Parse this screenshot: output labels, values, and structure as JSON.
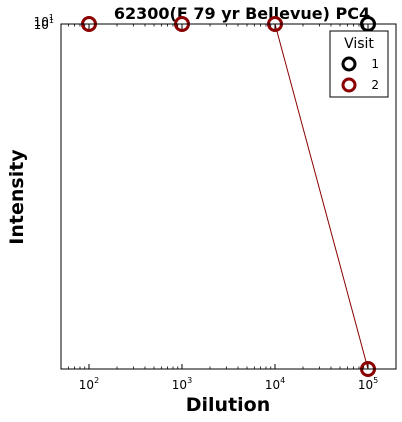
{
  "chart_data": {
    "type": "line",
    "title": "62300(F 79 yr Bellevue) PC4",
    "xlabel": "Dilution",
    "ylabel": "Intensity",
    "xscale": "log",
    "yscale": "log",
    "xlim": [
      50,
      200000
    ],
    "x_ticks": [
      {
        "base": "10",
        "exp": "2",
        "value": 100
      },
      {
        "base": "10",
        "exp": "3",
        "value": 1000
      },
      {
        "base": "10",
        "exp": "4",
        "value": 10000
      },
      {
        "base": "10",
        "exp": "5",
        "value": 100000
      }
    ],
    "y_top_tick": {
      "base": "10",
      "exp": "1"
    },
    "grid": false,
    "legend": {
      "title": "Visit",
      "placement": "top-right"
    },
    "series": [
      {
        "name": "1",
        "color": "#000000",
        "x": [
          100000
        ],
        "y": [
          "top"
        ]
      },
      {
        "name": "2",
        "color": "#8b0000",
        "x": [
          100,
          1000,
          10000,
          100000
        ],
        "y": [
          "top",
          "top",
          "top",
          "bottom"
        ]
      }
    ]
  }
}
